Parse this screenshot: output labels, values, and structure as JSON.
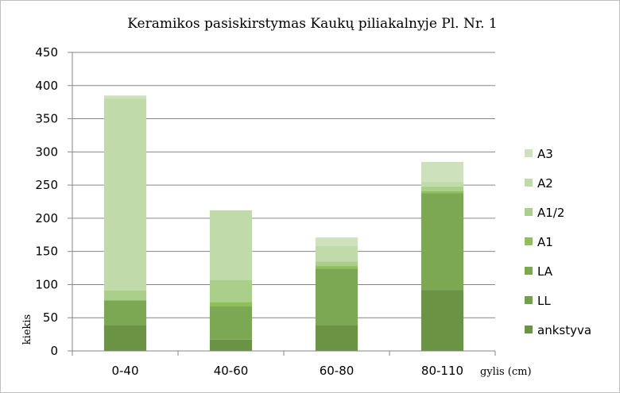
{
  "chart_data": {
    "type": "bar",
    "stacked": true,
    "title": "Keramikos pasiskirstymas Kaukų piliakalnyje Pl. Nr. 1",
    "xlabel": "gylis (cm)",
    "ylabel": "kiekis",
    "categories": [
      "0-40",
      "40-60",
      "60-80",
      "80-110"
    ],
    "ylim": [
      0,
      450
    ],
    "yticks": [
      0,
      50,
      100,
      150,
      200,
      250,
      300,
      350,
      400,
      450
    ],
    "grid": true,
    "legend_position": "right",
    "series": [
      {
        "name": "ankstyva",
        "color": "#6a9444",
        "values": [
          39,
          17,
          39,
          92
        ]
      },
      {
        "name": "LL",
        "color": "#73a04b",
        "values": [
          0,
          0,
          0,
          0
        ]
      },
      {
        "name": "LA",
        "color": "#7ca854",
        "values": [
          37,
          50,
          85,
          146
        ]
      },
      {
        "name": "A1",
        "color": "#90c05a",
        "values": [
          0,
          7,
          4,
          3
        ]
      },
      {
        "name": "A1/2",
        "color": "#a9cf8a",
        "values": [
          15,
          33,
          7,
          7
        ]
      },
      {
        "name": "A2",
        "color": "#c0daa9",
        "values": [
          289,
          105,
          23,
          7
        ]
      },
      {
        "name": "A3",
        "color": "#cde2bc",
        "values": [
          5,
          0,
          13,
          30
        ]
      }
    ]
  }
}
